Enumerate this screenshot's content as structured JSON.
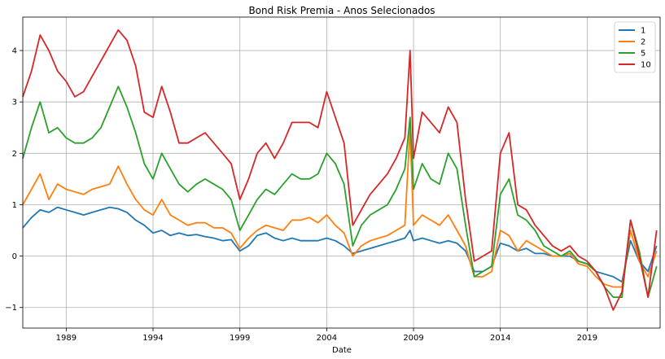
{
  "chart_data": {
    "type": "line",
    "title": "Bond Risk Premia - Anos Selecionados",
    "xlabel": "Date",
    "ylabel": "",
    "xlim": [
      1986.5,
      2023.2
    ],
    "ylim": [
      -1.4,
      4.65
    ],
    "x_ticks": [
      1989,
      1994,
      1999,
      2004,
      2009,
      2014,
      2019
    ],
    "x_tick_labels": [
      "1989",
      "1994",
      "1999",
      "2004",
      "2009",
      "2014",
      "2019"
    ],
    "y_ticks": [
      -1,
      0,
      1,
      2,
      3,
      4
    ],
    "y_tick_labels": [
      "−1",
      "0",
      "1",
      "2",
      "3",
      "4"
    ],
    "grid": true,
    "legend_position": "top-right",
    "x": [
      1986.5,
      1987.0,
      1987.5,
      1988.0,
      1988.5,
      1989.0,
      1989.5,
      1990.0,
      1990.5,
      1991.0,
      1991.5,
      1992.0,
      1992.5,
      1993.0,
      1993.5,
      1994.0,
      1994.5,
      1995.0,
      1995.5,
      1996.0,
      1996.5,
      1997.0,
      1997.5,
      1998.0,
      1998.5,
      1999.0,
      1999.5,
      2000.0,
      2000.5,
      2001.0,
      2001.5,
      2002.0,
      2002.5,
      2003.0,
      2003.5,
      2004.0,
      2004.5,
      2005.0,
      2005.5,
      2006.0,
      2006.5,
      2007.0,
      2007.5,
      2008.0,
      2008.5,
      2008.8,
      2009.0,
      2009.5,
      2010.0,
      2010.5,
      2011.0,
      2011.5,
      2012.0,
      2012.5,
      2013.0,
      2013.5,
      2014.0,
      2014.5,
      2015.0,
      2015.5,
      2016.0,
      2016.5,
      2017.0,
      2017.5,
      2018.0,
      2018.5,
      2019.0,
      2019.5,
      2020.0,
      2020.5,
      2021.0,
      2021.5,
      2022.0,
      2022.5,
      2023.0
    ],
    "series": [
      {
        "name": "1",
        "color": "#1f77b4",
        "values": [
          0.55,
          0.75,
          0.9,
          0.85,
          0.95,
          0.9,
          0.85,
          0.8,
          0.85,
          0.9,
          0.95,
          0.92,
          0.85,
          0.7,
          0.6,
          0.45,
          0.5,
          0.4,
          0.45,
          0.4,
          0.42,
          0.38,
          0.35,
          0.3,
          0.32,
          0.1,
          0.2,
          0.4,
          0.45,
          0.35,
          0.3,
          0.35,
          0.3,
          0.3,
          0.3,
          0.35,
          0.3,
          0.2,
          0.05,
          0.1,
          0.15,
          0.2,
          0.25,
          0.3,
          0.35,
          0.5,
          0.3,
          0.35,
          0.3,
          0.25,
          0.3,
          0.25,
          0.1,
          -0.3,
          -0.3,
          -0.2,
          0.25,
          0.2,
          0.1,
          0.15,
          0.05,
          0.05,
          0.0,
          0.0,
          0.0,
          -0.1,
          -0.15,
          -0.3,
          -0.35,
          -0.4,
          -0.5,
          0.3,
          -0.1,
          -0.3,
          0.2
        ]
      },
      {
        "name": "2",
        "color": "#ff7f0e",
        "values": [
          1.0,
          1.3,
          1.6,
          1.1,
          1.4,
          1.3,
          1.25,
          1.2,
          1.3,
          1.35,
          1.4,
          1.75,
          1.4,
          1.1,
          0.9,
          0.8,
          1.1,
          0.8,
          0.7,
          0.6,
          0.65,
          0.65,
          0.55,
          0.55,
          0.45,
          0.15,
          0.35,
          0.5,
          0.6,
          0.55,
          0.5,
          0.7,
          0.7,
          0.75,
          0.65,
          0.8,
          0.6,
          0.45,
          0.0,
          0.2,
          0.3,
          0.35,
          0.4,
          0.5,
          0.6,
          2.5,
          0.6,
          0.8,
          0.7,
          0.6,
          0.8,
          0.5,
          0.2,
          -0.4,
          -0.4,
          -0.3,
          0.5,
          0.4,
          0.1,
          0.3,
          0.2,
          0.1,
          0.0,
          0.0,
          0.05,
          -0.15,
          -0.2,
          -0.4,
          -0.55,
          -0.6,
          -0.6,
          0.5,
          -0.1,
          -0.4,
          0.1
        ]
      },
      {
        "name": "5",
        "color": "#2ca02c",
        "values": [
          1.9,
          2.5,
          3.0,
          2.4,
          2.5,
          2.3,
          2.2,
          2.2,
          2.3,
          2.5,
          2.9,
          3.3,
          2.9,
          2.4,
          1.8,
          1.5,
          2.0,
          1.7,
          1.4,
          1.25,
          1.4,
          1.5,
          1.4,
          1.3,
          1.1,
          0.5,
          0.8,
          1.1,
          1.3,
          1.2,
          1.4,
          1.6,
          1.5,
          1.5,
          1.6,
          2.0,
          1.8,
          1.4,
          0.2,
          0.6,
          0.8,
          0.9,
          1.0,
          1.3,
          1.7,
          2.7,
          1.3,
          1.8,
          1.5,
          1.4,
          2.0,
          1.7,
          0.6,
          -0.4,
          -0.3,
          -0.2,
          1.2,
          1.5,
          0.8,
          0.7,
          0.5,
          0.2,
          0.1,
          0.0,
          0.1,
          -0.1,
          -0.15,
          -0.3,
          -0.6,
          -0.8,
          -0.8,
          0.7,
          0.1,
          -0.8,
          -0.2
        ]
      },
      {
        "name": "10",
        "color": "#d62728",
        "values": [
          3.1,
          3.6,
          4.3,
          4.0,
          3.6,
          3.4,
          3.1,
          3.2,
          3.5,
          3.8,
          4.1,
          4.4,
          4.2,
          3.7,
          2.8,
          2.7,
          3.3,
          2.8,
          2.2,
          2.2,
          2.3,
          2.4,
          2.2,
          2.0,
          1.8,
          1.1,
          1.5,
          2.0,
          2.2,
          1.9,
          2.2,
          2.6,
          2.6,
          2.6,
          2.5,
          3.2,
          2.7,
          2.2,
          0.6,
          0.9,
          1.2,
          1.4,
          1.6,
          1.9,
          2.3,
          4.0,
          1.9,
          2.8,
          2.6,
          2.4,
          2.9,
          2.6,
          1.1,
          -0.1,
          0.0,
          0.1,
          2.0,
          2.4,
          1.0,
          0.9,
          0.6,
          0.4,
          0.2,
          0.1,
          0.2,
          0.0,
          -0.1,
          -0.3,
          -0.6,
          -1.05,
          -0.7,
          0.7,
          0.0,
          -0.8,
          0.5
        ]
      }
    ]
  }
}
